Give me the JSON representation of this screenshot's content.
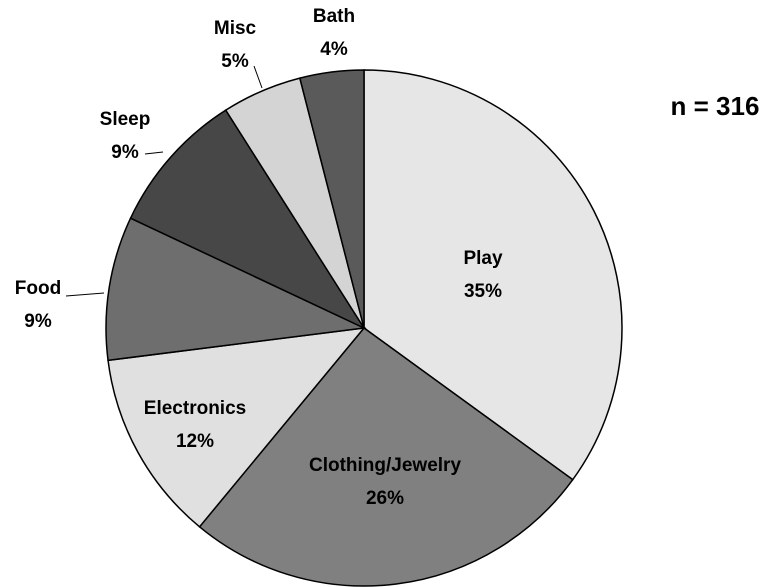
{
  "chart_data": {
    "type": "pie",
    "categories": [
      "Play",
      "Clothing/Jewelry",
      "Electronics",
      "Food",
      "Sleep",
      "Misc",
      "Bath"
    ],
    "values": [
      35,
      26,
      12,
      9,
      9,
      5,
      4
    ],
    "value_labels": [
      "35%",
      "26%",
      "12%",
      "9%",
      "9%",
      "5%",
      "4%"
    ],
    "colors": [
      "#e6e6e6",
      "#808080",
      "#e0e0e0",
      "#6e6e6e",
      "#474747",
      "#d4d4d4",
      "#5a5a5a"
    ],
    "annotation": "n = 316"
  }
}
